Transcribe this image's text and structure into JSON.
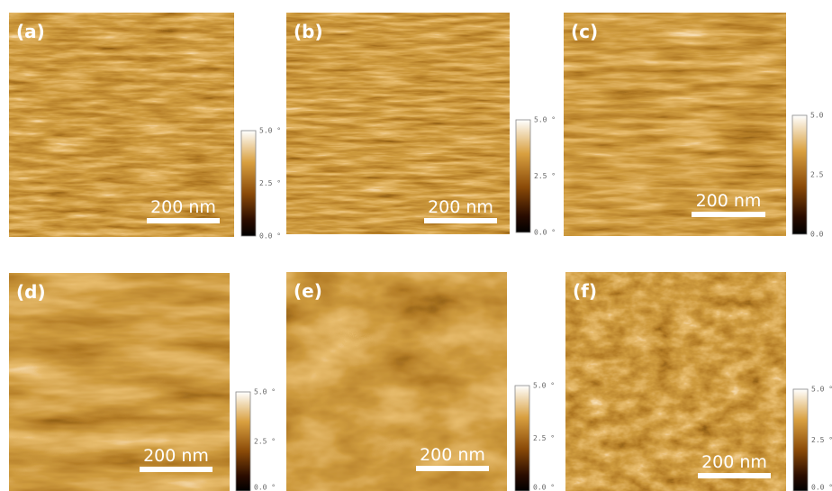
{
  "panels": [
    {
      "label": "(a)",
      "scale_bar": "200 nm",
      "colorbar_ticks": [
        "5.0 °",
        "2.5 °",
        "0.0 °"
      ]
    },
    {
      "label": "(b)",
      "scale_bar": "200 nm",
      "colorbar_ticks": [
        "5.0 °",
        "2.5 °",
        "0.0 °"
      ]
    },
    {
      "label": "(c)",
      "scale_bar": "200 nm",
      "colorbar_ticks": [
        "5.0",
        "2.5",
        "0.0"
      ]
    },
    {
      "label": "(d)",
      "scale_bar": "200 nm",
      "colorbar_ticks": [
        "5.0 °",
        "2.5 °",
        "0.0 °"
      ]
    },
    {
      "label": "(e)",
      "scale_bar": "200 nm",
      "colorbar_ticks": [
        "5.0 °",
        "2.5 °",
        "0.0 °"
      ]
    },
    {
      "label": "(f)",
      "scale_bar": "200 nm",
      "colorbar_ticks": [
        "5.0 °",
        "2.5 °",
        "0.0 °"
      ]
    }
  ]
}
